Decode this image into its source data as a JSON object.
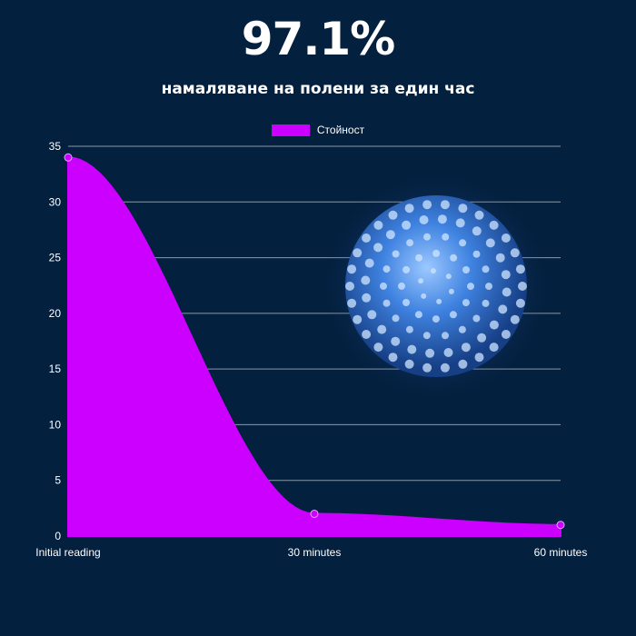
{
  "header": {
    "headline": "97.1%",
    "subtitle": "намаляване на полени за един час"
  },
  "colors": {
    "background": "#04203f",
    "series": "#cc00ff",
    "grid": "#8a97a8",
    "text": "#ffffff"
  },
  "decoration": {
    "image": "pollen-grain-illustration"
  },
  "chart_data": {
    "type": "area",
    "categories": [
      "Initial reading",
      "30 minutes",
      "60 minutes"
    ],
    "series": [
      {
        "name": "Стойност",
        "values": [
          34,
          2,
          1
        ]
      }
    ],
    "ylim": [
      0,
      35
    ],
    "yticks": [
      0,
      5,
      10,
      15,
      20,
      25,
      30,
      35
    ],
    "grid": true,
    "legend": "top-center",
    "smooth": true
  }
}
